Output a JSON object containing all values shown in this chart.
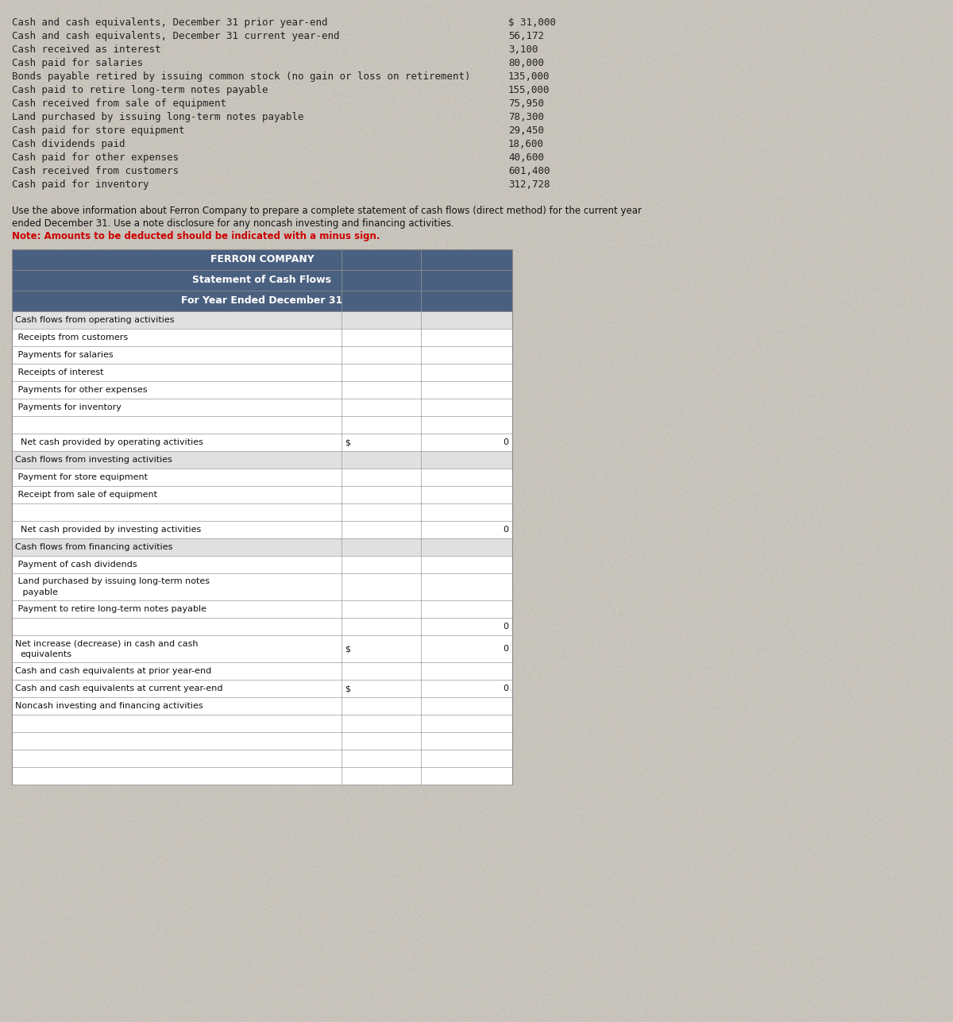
{
  "background_color": "#c8c4bc",
  "info_lines": [
    [
      "Cash and cash equivalents, December 31 prior year-end",
      "$ 31,000"
    ],
    [
      "Cash and cash equivalents, December 31 current year-end",
      "56,172"
    ],
    [
      "Cash received as interest",
      "3,100"
    ],
    [
      "Cash paid for salaries",
      "80,000"
    ],
    [
      "Bonds payable retired by issuing common stock (no gain or loss on retirement)",
      "135,000"
    ],
    [
      "Cash paid to retire long-term notes payable",
      "155,000"
    ],
    [
      "Cash received from sale of equipment",
      "75,950"
    ],
    [
      "Land purchased by issuing long-term notes payable",
      "78,300"
    ],
    [
      "Cash paid for store equipment",
      "29,450"
    ],
    [
      "Cash dividends paid",
      "18,600"
    ],
    [
      "Cash paid for other expenses",
      "40,600"
    ],
    [
      "Cash received from customers",
      "601,400"
    ],
    [
      "Cash paid for inventory",
      "312,728"
    ]
  ],
  "instruction_line1": "Use the above information about Ferron Company to prepare a complete statement of cash flows (direct method) for the current year",
  "instruction_line2": "ended December 31. Use a note disclosure for any noncash investing and financing activities.",
  "instruction_line3_bold": "Note: Amounts to be deducted should be indicated with a minus sign.",
  "table_header1": "FERRON COMPANY",
  "table_header2": "Statement of Cash Flows",
  "table_header3": "For Year Ended December 31",
  "table_rows": [
    {
      "label": "Cash flows from operating activities",
      "indent": 0,
      "col1": "",
      "col2": "",
      "section_header": true,
      "multiline": false
    },
    {
      "label": " Receipts from customers",
      "indent": 1,
      "col1": "",
      "col2": "",
      "section_header": false,
      "multiline": false
    },
    {
      "label": " Payments for salaries",
      "indent": 1,
      "col1": "",
      "col2": "",
      "section_header": false,
      "multiline": false
    },
    {
      "label": " Receipts of interest",
      "indent": 1,
      "col1": "",
      "col2": "",
      "section_header": false,
      "multiline": false
    },
    {
      "label": " Payments for other expenses",
      "indent": 1,
      "col1": "",
      "col2": "",
      "section_header": false,
      "multiline": false
    },
    {
      "label": " Payments for inventory",
      "indent": 1,
      "col1": "",
      "col2": "",
      "section_header": false,
      "multiline": false
    },
    {
      "label": "",
      "indent": 0,
      "col1": "",
      "col2": "",
      "section_header": false,
      "multiline": false
    },
    {
      "label": "  Net cash provided by operating activities",
      "indent": 0,
      "col1": "$",
      "col2": "0",
      "section_header": false,
      "multiline": false
    },
    {
      "label": "Cash flows from investing activities",
      "indent": 0,
      "col1": "",
      "col2": "",
      "section_header": true,
      "multiline": false
    },
    {
      "label": " Payment for store equipment",
      "indent": 1,
      "col1": "",
      "col2": "",
      "section_header": false,
      "multiline": false
    },
    {
      "label": " Receipt from sale of equipment",
      "indent": 1,
      "col1": "",
      "col2": "",
      "section_header": false,
      "multiline": false
    },
    {
      "label": "",
      "indent": 0,
      "col1": "",
      "col2": "",
      "section_header": false,
      "multiline": false
    },
    {
      "label": "  Net cash provided by investing activities",
      "indent": 0,
      "col1": "",
      "col2": "0",
      "section_header": false,
      "multiline": false
    },
    {
      "label": "Cash flows from financing activities",
      "indent": 0,
      "col1": "",
      "col2": "",
      "section_header": true,
      "multiline": false
    },
    {
      "label": " Payment of cash dividends",
      "indent": 1,
      "col1": "",
      "col2": "",
      "section_header": false,
      "multiline": false
    },
    {
      "label": " Land purchased by issuing long-term notes\n payable",
      "indent": 1,
      "col1": "",
      "col2": "",
      "section_header": false,
      "multiline": true
    },
    {
      "label": " Payment to retire long-term notes payable",
      "indent": 1,
      "col1": "",
      "col2": "",
      "section_header": false,
      "multiline": false
    },
    {
      "label": "",
      "indent": 0,
      "col1": "",
      "col2": "0",
      "section_header": false,
      "multiline": false
    },
    {
      "label": "Net increase (decrease) in cash and cash\nequivalents",
      "indent": 0,
      "col1": "$",
      "col2": "0",
      "section_header": false,
      "multiline": true
    },
    {
      "label": "Cash and cash equivalents at prior year-end",
      "indent": 0,
      "col1": "",
      "col2": "",
      "section_header": false,
      "multiline": false
    },
    {
      "label": "Cash and cash equivalents at current year-end",
      "indent": 0,
      "col1": "$",
      "col2": "0",
      "section_header": false,
      "multiline": false
    },
    {
      "label": "Noncash investing and financing activities",
      "indent": 0,
      "col1": "",
      "col2": "",
      "section_header": false,
      "multiline": false
    },
    {
      "label": "",
      "indent": 0,
      "col1": "",
      "col2": "",
      "section_header": false,
      "multiline": false
    },
    {
      "label": "",
      "indent": 0,
      "col1": "",
      "col2": "",
      "section_header": false,
      "multiline": false
    },
    {
      "label": "",
      "indent": 0,
      "col1": "",
      "col2": "",
      "section_header": false,
      "multiline": false
    },
    {
      "label": "",
      "indent": 0,
      "col1": "",
      "col2": "",
      "section_header": false,
      "multiline": false
    }
  ],
  "header_bg": "#4a6080",
  "table_border_color": "#888888",
  "grid_color": "#999999",
  "font_size_info": 9.0,
  "font_size_table": 8.0,
  "font_size_header": 9.0
}
